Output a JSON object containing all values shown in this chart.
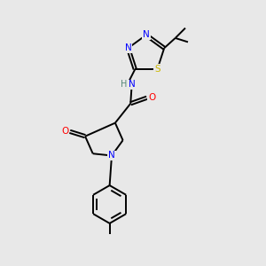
{
  "background_color": "#e8e8e8",
  "bond_color": "#000000",
  "atom_colors": {
    "N": "#0000ff",
    "O": "#ff0000",
    "S": "#ccb800",
    "C": "#000000",
    "H": "#558877"
  },
  "figsize": [
    3.0,
    3.0
  ],
  "dpi": 100,
  "lw": 1.4,
  "fontsize": 7.5
}
